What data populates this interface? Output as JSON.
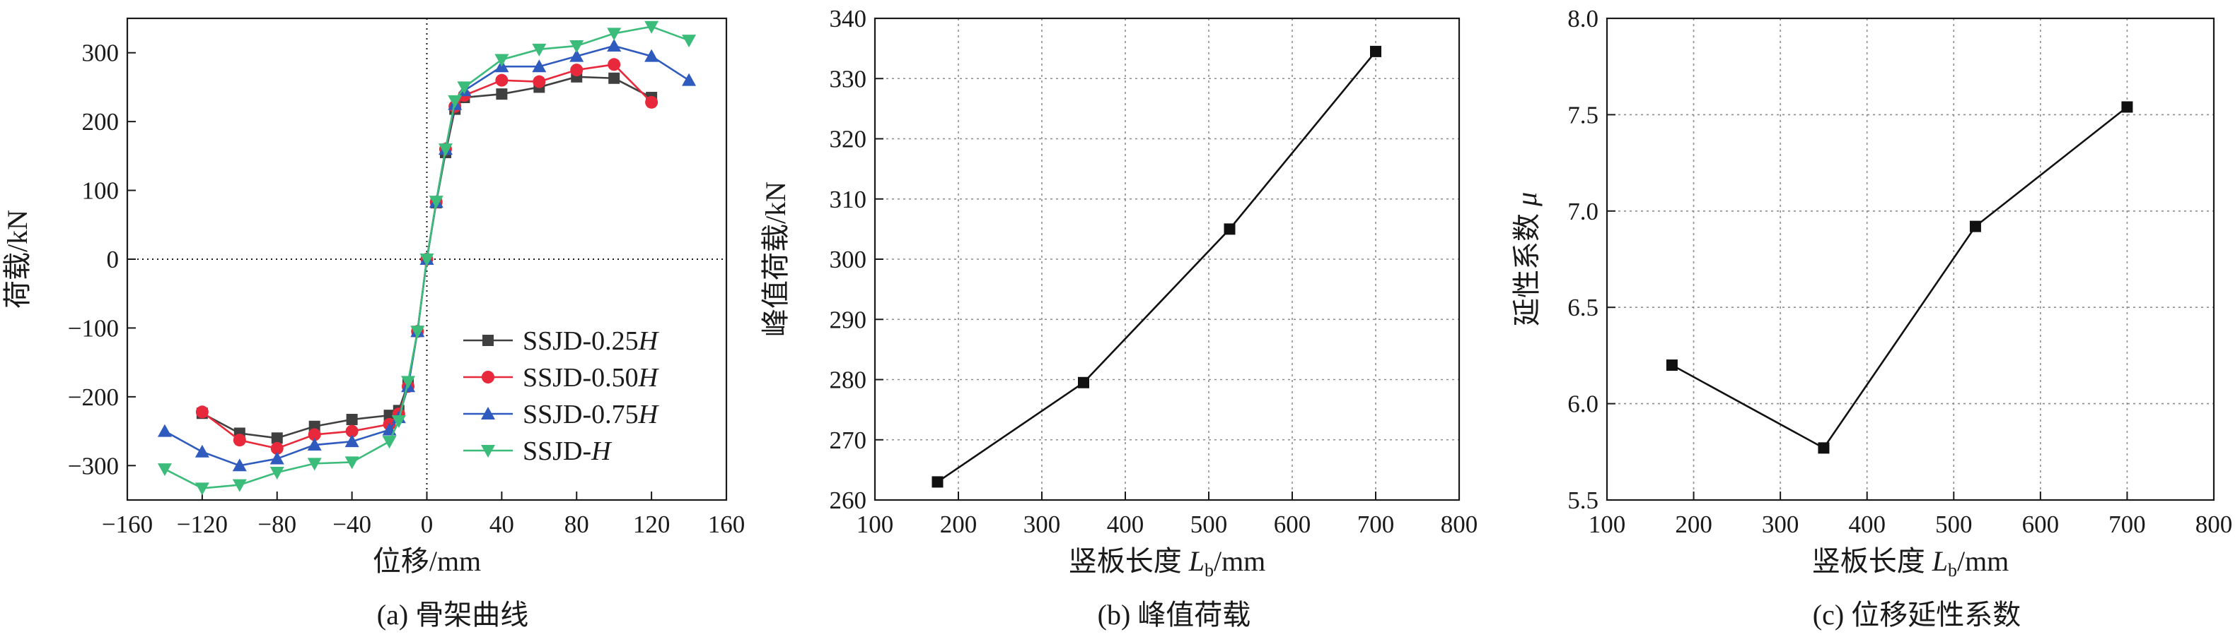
{
  "chart_data": [
    {
      "type": "line",
      "caption": "(a) 骨架曲线",
      "xlabel": "位移/mm",
      "ylabel": "荷载/kN",
      "xlim": [
        -160,
        160
      ],
      "ylim": [
        -350,
        350
      ],
      "xticks": [
        -160,
        -120,
        -80,
        -40,
        0,
        40,
        80,
        120,
        160
      ],
      "yticks": [
        -300,
        -200,
        -100,
        0,
        100,
        200,
        300
      ],
      "xtick_labels": [
        "−160",
        "−120",
        "−80",
        "−40",
        "0",
        "40",
        "80",
        "120",
        "160"
      ],
      "ytick_labels": [
        "−300",
        "−200",
        "−100",
        "0",
        "100",
        "200",
        "300"
      ],
      "grid": false,
      "zero_lines": true,
      "legend_position": "bottom-right",
      "series": [
        {
          "name": "SSJD-0.25",
          "name_suffix": "H",
          "color": "#404040",
          "marker": "square",
          "x": [
            -120,
            -100,
            -80,
            -60,
            -40,
            -20,
            -15,
            -10,
            -5,
            0,
            5,
            10,
            15,
            20,
            40,
            60,
            80,
            100,
            120
          ],
          "y": [
            -224,
            -253,
            -260,
            -243,
            -233,
            -227,
            -220,
            -180,
            -105,
            0,
            82,
            155,
            218,
            235,
            240,
            250,
            265,
            263,
            235
          ]
        },
        {
          "name": "SSJD-0.50",
          "name_suffix": "H",
          "color": "#e8293b",
          "marker": "circle",
          "x": [
            -120,
            -100,
            -80,
            -60,
            -40,
            -20,
            -15,
            -10,
            -5,
            0,
            5,
            10,
            15,
            20,
            40,
            60,
            80,
            100,
            120
          ],
          "y": [
            -222,
            -263,
            -275,
            -255,
            -250,
            -240,
            -225,
            -185,
            -105,
            0,
            83,
            160,
            222,
            238,
            260,
            258,
            275,
            283,
            228
          ]
        },
        {
          "name": "SSJD-0.75",
          "name_suffix": "H",
          "color": "#2f5bbf",
          "marker": "triangle-up",
          "x": [
            -140,
            -120,
            -100,
            -80,
            -60,
            -40,
            -20,
            -15,
            -10,
            -5,
            0,
            5,
            10,
            15,
            20,
            40,
            60,
            80,
            100,
            120,
            140
          ],
          "y": [
            -250,
            -280,
            -300,
            -290,
            -270,
            -265,
            -248,
            -230,
            -185,
            -105,
            0,
            83,
            160,
            225,
            245,
            280,
            280,
            295,
            310,
            295,
            260
          ]
        },
        {
          "name": "SSJD-",
          "name_suffix": "H",
          "color": "#3cbc7a",
          "marker": "triangle-down",
          "x": [
            -140,
            -120,
            -100,
            -80,
            -60,
            -40,
            -20,
            -15,
            -10,
            -5,
            0,
            5,
            10,
            15,
            20,
            40,
            60,
            80,
            100,
            120,
            140
          ],
          "y": [
            -305,
            -333,
            -328,
            -310,
            -297,
            -295,
            -265,
            -235,
            -178,
            -105,
            0,
            84,
            160,
            230,
            250,
            290,
            305,
            310,
            328,
            338,
            318
          ]
        }
      ]
    },
    {
      "type": "line",
      "caption": "(b) 峰值荷载",
      "xlabel_pre": "竖板长度 ",
      "xlabel_var": "L",
      "xlabel_sub": "b",
      "xlabel_post": "/mm",
      "ylabel": "峰值荷载/kN",
      "xlim": [
        100,
        800
      ],
      "ylim": [
        260,
        340
      ],
      "xticks": [
        100,
        200,
        300,
        400,
        500,
        600,
        700,
        800
      ],
      "yticks": [
        260,
        270,
        280,
        290,
        300,
        310,
        320,
        330,
        340
      ],
      "xtick_labels": [
        "100",
        "200",
        "300",
        "400",
        "500",
        "600",
        "700",
        "800"
      ],
      "ytick_labels": [
        "260",
        "270",
        "280",
        "290",
        "300",
        "310",
        "320",
        "330",
        "340"
      ],
      "grid": true,
      "series": [
        {
          "color": "#111111",
          "marker": "square",
          "x": [
            175,
            350,
            525,
            700
          ],
          "y": [
            263,
            279.5,
            305,
            334.5
          ]
        }
      ]
    },
    {
      "type": "line",
      "caption": "(c) 位移延性系数",
      "xlabel_pre": "竖板长度 ",
      "xlabel_var": "L",
      "xlabel_sub": "b",
      "xlabel_post": "/mm",
      "ylabel": "延性系数 ",
      "ylabel_var": "μ",
      "xlim": [
        100,
        800
      ],
      "ylim": [
        5.5,
        8.0
      ],
      "xticks": [
        100,
        200,
        300,
        400,
        500,
        600,
        700,
        800
      ],
      "yticks": [
        5.5,
        6.0,
        6.5,
        7.0,
        7.5,
        8.0
      ],
      "xtick_labels": [
        "100",
        "200",
        "300",
        "400",
        "500",
        "600",
        "700",
        "800"
      ],
      "ytick_labels": [
        "5.5",
        "6.0",
        "6.5",
        "7.0",
        "7.5",
        "8.0"
      ],
      "grid": true,
      "series": [
        {
          "color": "#111111",
          "marker": "square",
          "x": [
            175,
            350,
            525,
            700
          ],
          "y": [
            6.2,
            5.77,
            6.92,
            7.54
          ]
        }
      ]
    }
  ]
}
